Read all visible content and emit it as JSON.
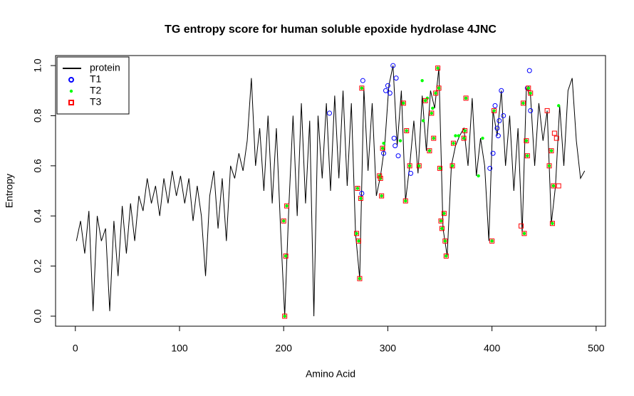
{
  "chart_data": {
    "type": "line",
    "title": "TG entropy score for  human soluble epoxide hydrolase 4JNC",
    "x_label": "Amino Acid",
    "y_label": "Entropy",
    "xlim": [
      -19,
      509
    ],
    "ylim": [
      -0.04,
      1.04
    ],
    "xticks": [
      0,
      100,
      200,
      300,
      400,
      500
    ],
    "yticks": [
      {
        "value": 0,
        "label": "0.0"
      },
      0.2,
      0.4,
      0.6,
      0.8,
      {
        "value": 1,
        "label": "1.0"
      }
    ],
    "legend": "top-left",
    "series": [
      {
        "name": "protein",
        "type": "line",
        "color": "#000000",
        "x": [
          1,
          5,
          9,
          13,
          17,
          21,
          25,
          29,
          33,
          37,
          41,
          45,
          49,
          53,
          57,
          61,
          65,
          69,
          73,
          77,
          81,
          85,
          89,
          93,
          97,
          101,
          105,
          109,
          113,
          117,
          121,
          125,
          129,
          133,
          137,
          141,
          145,
          149,
          153,
          157,
          161,
          165,
          169,
          173,
          177,
          181,
          185,
          189,
          193,
          197,
          201,
          205,
          209,
          213,
          217,
          221,
          225,
          229,
          233,
          237,
          241,
          245,
          249,
          253,
          257,
          261,
          265,
          269,
          273,
          277,
          281,
          285,
          289,
          293,
          297,
          301,
          305,
          309,
          313,
          317,
          321,
          325,
          329,
          333,
          337,
          341,
          345,
          349,
          353,
          357,
          361,
          365,
          369,
          373,
          377,
          381,
          385,
          389,
          393,
          397,
          401,
          405,
          409,
          413,
          417,
          421,
          425,
          429,
          433,
          437,
          441,
          445,
          449,
          453,
          457,
          461,
          465,
          469,
          473,
          477,
          481,
          485,
          489
        ],
        "values": [
          0.3,
          0.38,
          0.25,
          0.42,
          0.02,
          0.4,
          0.3,
          0.35,
          0.02,
          0.38,
          0.16,
          0.44,
          0.25,
          0.45,
          0.3,
          0.48,
          0.42,
          0.55,
          0.45,
          0.52,
          0.4,
          0.55,
          0.45,
          0.58,
          0.48,
          0.56,
          0.45,
          0.55,
          0.38,
          0.52,
          0.4,
          0.16,
          0.48,
          0.58,
          0.35,
          0.55,
          0.3,
          0.6,
          0.55,
          0.65,
          0.58,
          0.7,
          0.95,
          0.6,
          0.75,
          0.5,
          0.8,
          0.45,
          0.75,
          0.35,
          0.0,
          0.44,
          0.8,
          0.4,
          0.85,
          0.45,
          0.78,
          0.0,
          0.8,
          0.55,
          0.85,
          0.5,
          0.88,
          0.55,
          0.9,
          0.52,
          0.85,
          0.33,
          0.15,
          0.91,
          0.58,
          0.85,
          0.48,
          0.56,
          0.68,
          0.92,
          1.0,
          0.68,
          0.9,
          0.46,
          0.6,
          0.78,
          0.57,
          0.88,
          0.66,
          0.9,
          0.83,
          0.99,
          0.35,
          0.24,
          0.6,
          0.68,
          0.72,
          0.75,
          0.6,
          0.87,
          0.56,
          0.71,
          0.6,
          0.3,
          0.82,
          0.72,
          0.9,
          0.6,
          0.8,
          0.5,
          0.75,
          0.33,
          0.91,
          0.88,
          0.6,
          0.85,
          0.7,
          0.82,
          0.37,
          0.52,
          0.84,
          0.6,
          0.9,
          0.95,
          0.7,
          0.55,
          0.58
        ]
      },
      {
        "name": "T1",
        "type": "scatter",
        "marker": "circle",
        "color": "#0000FF",
        "x": [
          244,
          275,
          276,
          296,
          298,
          300,
          302,
          305,
          306,
          307,
          308,
          310,
          322,
          398,
          401,
          403,
          405,
          406,
          407,
          409,
          411,
          434,
          436,
          437
        ],
        "values": [
          0.81,
          0.49,
          0.94,
          0.65,
          0.9,
          0.92,
          0.89,
          1.0,
          0.71,
          0.68,
          0.95,
          0.64,
          0.57,
          0.59,
          0.65,
          0.84,
          0.75,
          0.72,
          0.78,
          0.9,
          0.8,
          0.91,
          0.98,
          0.82
        ]
      },
      {
        "name": "T2",
        "type": "scatter",
        "marker": "dot",
        "color": "#00FF00",
        "x": [
          200,
          201,
          202,
          203,
          270,
          271,
          272,
          273,
          274,
          275,
          292,
          293,
          294,
          295,
          296,
          312,
          315,
          317,
          318,
          321,
          330,
          333,
          334,
          336,
          338,
          340,
          342,
          343,
          344,
          346,
          348,
          349,
          350,
          351,
          352,
          354,
          355,
          356,
          362,
          363,
          365,
          368,
          373,
          374,
          375,
          387,
          391,
          400,
          402,
          430,
          431,
          433,
          434,
          435,
          437,
          455,
          457,
          458,
          459,
          464
        ],
        "values": [
          0.38,
          0.0,
          0.24,
          0.44,
          0.33,
          0.51,
          0.3,
          0.15,
          0.47,
          0.91,
          0.56,
          0.55,
          0.48,
          0.67,
          0.69,
          0.7,
          0.85,
          0.46,
          0.74,
          0.6,
          0.6,
          0.94,
          0.78,
          0.86,
          0.87,
          0.66,
          0.81,
          0.83,
          0.71,
          0.89,
          0.99,
          0.91,
          0.59,
          0.38,
          0.35,
          0.41,
          0.3,
          0.24,
          0.6,
          0.69,
          0.72,
          0.72,
          0.71,
          0.74,
          0.87,
          0.56,
          0.71,
          0.3,
          0.82,
          0.85,
          0.33,
          0.7,
          0.64,
          0.91,
          0.89,
          0.6,
          0.66,
          0.37,
          0.52,
          0.84
        ]
      },
      {
        "name": "T3",
        "type": "scatter",
        "marker": "square",
        "color": "#FF0000",
        "x": [
          200,
          201,
          202,
          203,
          270,
          271,
          272,
          273,
          274,
          275,
          292,
          293,
          294,
          295,
          315,
          317,
          318,
          321,
          330,
          336,
          340,
          342,
          344,
          346,
          348,
          349,
          350,
          351,
          352,
          354,
          355,
          356,
          362,
          363,
          373,
          374,
          375,
          400,
          402,
          428,
          430,
          431,
          433,
          434,
          435,
          437,
          453,
          455,
          457,
          458,
          459,
          460,
          462,
          464
        ],
        "values": [
          0.38,
          0.0,
          0.24,
          0.44,
          0.33,
          0.51,
          0.3,
          0.15,
          0.47,
          0.91,
          0.56,
          0.55,
          0.48,
          0.67,
          0.85,
          0.46,
          0.74,
          0.6,
          0.6,
          0.86,
          0.66,
          0.81,
          0.71,
          0.89,
          0.99,
          0.91,
          0.59,
          0.38,
          0.35,
          0.41,
          0.3,
          0.24,
          0.6,
          0.69,
          0.71,
          0.74,
          0.87,
          0.3,
          0.82,
          0.36,
          0.85,
          0.33,
          0.7,
          0.64,
          0.91,
          0.89,
          0.82,
          0.6,
          0.66,
          0.37,
          0.52,
          0.73,
          0.71,
          0.52
        ]
      }
    ]
  }
}
